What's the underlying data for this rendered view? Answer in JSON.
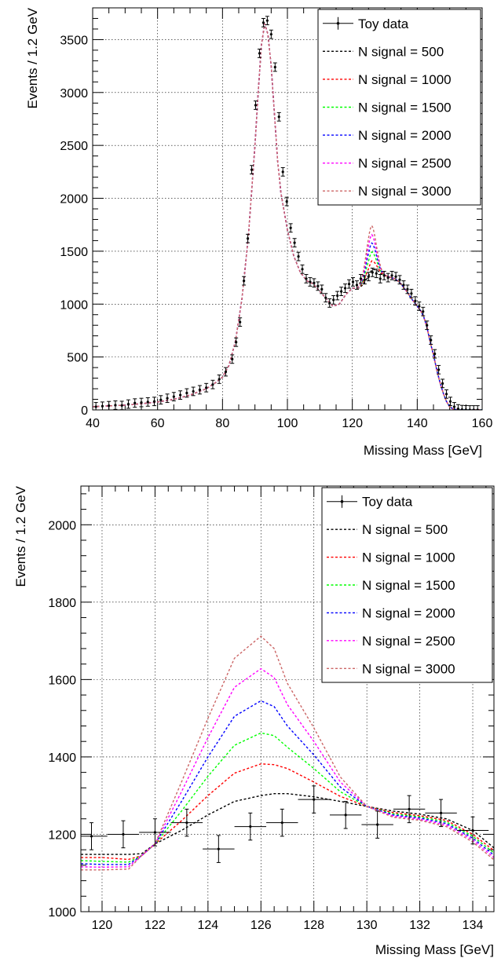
{
  "chart_data": [
    {
      "type": "line",
      "xlabel": "Missing Mass [GeV]",
      "ylabel": "Events / 1.2 GeV",
      "xlim": [
        40,
        160
      ],
      "ylim": [
        0,
        3800
      ],
      "xticks": [
        40,
        60,
        80,
        100,
        120,
        140,
        160
      ],
      "yticks": [
        0,
        500,
        1000,
        1500,
        2000,
        2500,
        3000,
        3500
      ],
      "grid": true,
      "legend_position": "top-right",
      "legend": [
        "Toy data",
        "N signal = 500",
        "N signal = 1000",
        "N signal = 1500",
        "N signal = 2000",
        "N signal = 2500",
        "N signal = 3000"
      ],
      "data_points": {
        "name": "Toy data",
        "x": [
          41,
          43,
          45,
          47,
          49,
          51,
          53,
          55,
          57,
          59,
          61,
          63,
          65,
          67,
          69,
          71,
          73,
          75,
          77,
          79,
          81,
          83,
          84.2,
          85.4,
          86.6,
          87.8,
          89,
          90.2,
          91.4,
          92.6,
          93.8,
          95,
          96.2,
          97.4,
          98.6,
          99.8,
          101,
          102.2,
          103.4,
          104.6,
          105.8,
          107,
          108.2,
          109.4,
          110.6,
          111.8,
          113,
          114.2,
          115.4,
          116.6,
          117.8,
          119,
          120.2,
          121.4,
          122.6,
          123.8,
          125,
          126.2,
          127.4,
          128.6,
          129.8,
          131,
          132.2,
          133.4,
          134.6,
          135.8,
          137,
          138.2,
          139.4,
          140.6,
          141.8,
          143,
          144.2,
          145.4,
          146.6,
          147.8,
          149,
          150.2,
          151.4,
          152.6,
          153.8,
          155,
          156.2,
          157.4,
          158.6
        ],
        "y": [
          30,
          35,
          40,
          45,
          42,
          55,
          65,
          70,
          75,
          80,
          95,
          110,
          125,
          140,
          160,
          175,
          190,
          210,
          240,
          290,
          360,
          480,
          640,
          830,
          1220,
          1620,
          2270,
          2880,
          3370,
          3660,
          3680,
          3550,
          3240,
          2770,
          2250,
          1970,
          1720,
          1580,
          1450,
          1330,
          1240,
          1210,
          1200,
          1170,
          1140,
          1060,
          1010,
          1040,
          1080,
          1120,
          1150,
          1190,
          1210,
          1180,
          1240,
          1230,
          1260,
          1300,
          1290,
          1240,
          1270,
          1250,
          1270,
          1260,
          1230,
          1180,
          1140,
          1100,
          1030,
          980,
          930,
          800,
          660,
          530,
          380,
          250,
          150,
          80,
          30,
          10,
          3,
          1,
          0,
          0,
          0
        ],
        "yerr": 40
      },
      "fit_x": [
        40,
        45,
        50,
        55,
        60,
        65,
        70,
        75,
        78,
        80,
        82,
        84,
        86,
        88,
        90,
        91,
        92,
        93,
        94,
        95,
        96,
        97,
        98,
        100,
        102,
        104,
        106,
        108,
        110,
        112,
        114,
        116,
        118,
        120,
        121,
        122,
        123,
        124,
        125,
        125.5,
        126,
        127,
        128,
        129,
        130,
        131,
        132,
        133,
        134,
        135,
        136,
        137,
        138,
        139,
        140,
        141,
        142,
        143,
        144,
        145,
        146,
        147,
        148,
        149,
        150,
        151,
        152,
        153,
        154,
        156,
        158,
        160
      ],
      "fit_base": [
        30,
        38,
        45,
        58,
        75,
        100,
        140,
        200,
        260,
        310,
        420,
        650,
        1050,
        1650,
        2500,
        3000,
        3450,
        3650,
        3550,
        3250,
        2800,
        2350,
        2050,
        1700,
        1450,
        1300,
        1220,
        1190,
        1120,
        1050,
        980,
        1000,
        1090,
        1150,
        1150,
        1150,
        1170,
        1200,
        1230,
        1260,
        1290,
        1300,
        1300,
        1280,
        1270,
        1260,
        1250,
        1240,
        1220,
        1190,
        1150,
        1110,
        1060,
        1020,
        980,
        940,
        880,
        780,
        640,
        520,
        380,
        260,
        160,
        80,
        30,
        10,
        3,
        0,
        0,
        0,
        0,
        0
      ],
      "series": [
        {
          "name": "N signal = 500",
          "color": "#000000",
          "amplitude": 35
        },
        {
          "name": "N signal = 1000",
          "color": "#ff0000",
          "amplitude": 120
        },
        {
          "name": "N signal = 1500",
          "color": "#00ff00",
          "amplitude": 205
        },
        {
          "name": "N signal = 2000",
          "color": "#0000ff",
          "amplitude": 290
        },
        {
          "name": "N signal = 2500",
          "color": "#ff00ff",
          "amplitude": 370
        },
        {
          "name": "N signal = 3000",
          "color": "#cc6666",
          "amplitude": 455
        }
      ]
    },
    {
      "type": "line",
      "xlabel": "Missing Mass [GeV]",
      "ylabel": "Events / 1.2 GeV",
      "xlim": [
        119.2,
        134.8
      ],
      "ylim": [
        1000,
        2100
      ],
      "xticks": [
        120,
        122,
        124,
        126,
        128,
        130,
        132,
        134
      ],
      "yticks": [
        1000,
        1200,
        1400,
        1600,
        1800,
        2000
      ],
      "grid": true,
      "legend_position": "top-right",
      "legend": [
        "Toy data",
        "N signal = 500",
        "N signal = 1000",
        "N signal = 1500",
        "N signal = 2000",
        "N signal = 2500",
        "N signal = 3000"
      ],
      "data_points": {
        "name": "Toy data",
        "x": [
          119.6,
          120.8,
          122.0,
          123.2,
          124.4,
          125.6,
          126.8,
          128.0,
          129.2,
          130.4,
          131.6,
          132.8,
          134.0
        ],
        "y": [
          1195,
          1200,
          1205,
          1230,
          1162,
          1220,
          1230,
          1290,
          1250,
          1225,
          1265,
          1255,
          1210
        ],
        "xerr": 0.6,
        "yerr": 35
      },
      "series": [
        {
          "name": "N signal = 500",
          "color": "#000000",
          "x": [
            119.2,
            120,
            121,
            121.5,
            122,
            123,
            124,
            125,
            126,
            126.5,
            127,
            128,
            129,
            130,
            131,
            132,
            133,
            134,
            134.8
          ],
          "y": [
            1148,
            1148,
            1148,
            1150,
            1175,
            1210,
            1250,
            1285,
            1300,
            1305,
            1305,
            1297,
            1285,
            1272,
            1260,
            1252,
            1240,
            1210,
            1165
          ]
        },
        {
          "name": "N signal = 1000",
          "color": "#ff0000",
          "x": [
            119.2,
            120,
            121,
            121.5,
            122,
            123,
            124,
            125,
            126,
            126.5,
            127,
            128,
            129,
            130,
            131,
            132,
            133,
            134,
            134.8
          ],
          "y": [
            1140,
            1140,
            1135,
            1145,
            1175,
            1235,
            1300,
            1358,
            1382,
            1380,
            1370,
            1335,
            1298,
            1272,
            1256,
            1248,
            1236,
            1200,
            1158
          ]
        },
        {
          "name": "N signal = 1500",
          "color": "#00ff00",
          "x": [
            119.2,
            120,
            121,
            121.5,
            122,
            123,
            124,
            125,
            126,
            126.5,
            127,
            128,
            129,
            130,
            131,
            132,
            133,
            134,
            134.8
          ],
          "y": [
            1132,
            1130,
            1128,
            1145,
            1175,
            1260,
            1350,
            1430,
            1462,
            1455,
            1425,
            1370,
            1310,
            1272,
            1253,
            1245,
            1232,
            1195,
            1152
          ]
        },
        {
          "name": "N signal = 2000",
          "color": "#0000ff",
          "x": [
            119.2,
            120,
            121,
            121.5,
            122,
            123,
            124,
            125,
            126,
            126.5,
            127,
            128,
            129,
            130,
            131,
            132,
            133,
            134,
            134.8
          ],
          "y": [
            1124,
            1122,
            1122,
            1145,
            1175,
            1285,
            1400,
            1505,
            1545,
            1530,
            1480,
            1405,
            1322,
            1272,
            1250,
            1242,
            1228,
            1190,
            1146
          ]
        },
        {
          "name": "N signal = 2500",
          "color": "#ff00ff",
          "x": [
            119.2,
            120,
            121,
            121.5,
            122,
            123,
            124,
            125,
            126,
            126.5,
            127,
            128,
            129,
            130,
            131,
            132,
            133,
            134,
            134.8
          ],
          "y": [
            1116,
            1115,
            1116,
            1145,
            1175,
            1310,
            1450,
            1580,
            1628,
            1605,
            1535,
            1440,
            1335,
            1272,
            1247,
            1239,
            1224,
            1185,
            1140
          ]
        },
        {
          "name": "N signal = 3000",
          "color": "#cc6666",
          "x": [
            119.2,
            120,
            121,
            121.5,
            122,
            123,
            124,
            125,
            126,
            126.5,
            127,
            128,
            129,
            130,
            131,
            132,
            133,
            134,
            134.8
          ],
          "y": [
            1108,
            1108,
            1110,
            1145,
            1175,
            1335,
            1500,
            1655,
            1712,
            1680,
            1590,
            1475,
            1348,
            1272,
            1244,
            1236,
            1220,
            1180,
            1134
          ]
        }
      ]
    }
  ]
}
